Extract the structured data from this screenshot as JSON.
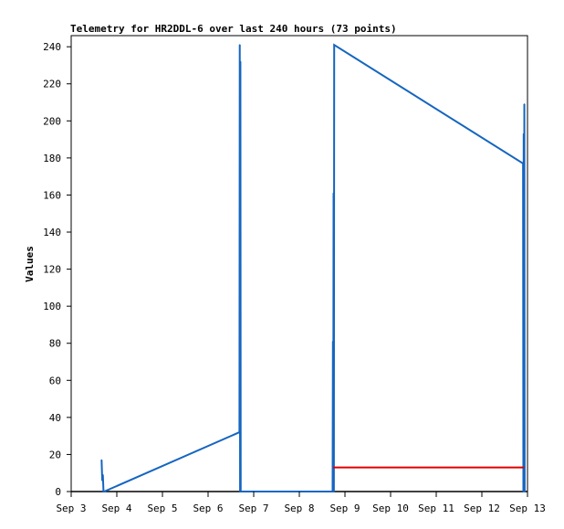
{
  "chart_data": {
    "type": "line",
    "title": "Telemetry for HR2DDL-6 over last 240 hours (73 points)",
    "ylabel": "Values",
    "xlabel": "",
    "x_ticks": [
      "Sep 3",
      "Sep 4",
      "Sep 5",
      "Sep 6",
      "Sep 7",
      "Sep 8",
      "Sep 9",
      "Sep 10",
      "Sep 11",
      "Sep 12",
      "Sep 13"
    ],
    "y_ticks": [
      0,
      20,
      40,
      60,
      80,
      100,
      120,
      140,
      160,
      180,
      200,
      220,
      240
    ],
    "xlim": [
      "2024-09-03",
      "2024-09-13"
    ],
    "ylim": [
      0,
      246
    ],
    "grid": false,
    "legend": "none",
    "series": [
      {
        "color": "#1565c0",
        "points": [
          [
            "2024-09-03 16:00",
            17
          ],
          [
            "2024-09-03 16:20",
            6
          ],
          [
            "2024-09-03 16:40",
            9
          ],
          [
            "2024-09-03 17:00",
            0
          ],
          [
            "2024-09-03 17:20",
            0
          ],
          [
            "2024-09-06 16:30",
            32
          ],
          [
            "2024-09-06 16:40",
            241
          ],
          [
            "2024-09-06 16:50",
            0
          ],
          [
            "2024-09-06 17:00",
            232
          ],
          [
            "2024-09-06 17:10",
            0
          ],
          [
            "2024-09-08 17:30",
            0
          ],
          [
            "2024-09-08 17:40",
            81
          ],
          [
            "2024-09-08 17:50",
            0
          ],
          [
            "2024-09-08 18:00",
            161
          ],
          [
            "2024-09-08 18:10",
            0
          ],
          [
            "2024-09-08 18:20",
            241
          ],
          [
            "2024-09-12 21:40",
            177
          ],
          [
            "2024-09-12 21:50",
            0
          ],
          [
            "2024-09-12 22:00",
            193
          ],
          [
            "2024-09-12 22:10",
            0
          ],
          [
            "2024-09-12 22:20",
            209
          ],
          [
            "2024-09-12 22:30",
            0
          ]
        ]
      },
      {
        "color": "#e00000",
        "points": [
          [
            "2024-09-08 18:00",
            13
          ],
          [
            "2024-09-12 22:00",
            13
          ]
        ]
      }
    ]
  }
}
